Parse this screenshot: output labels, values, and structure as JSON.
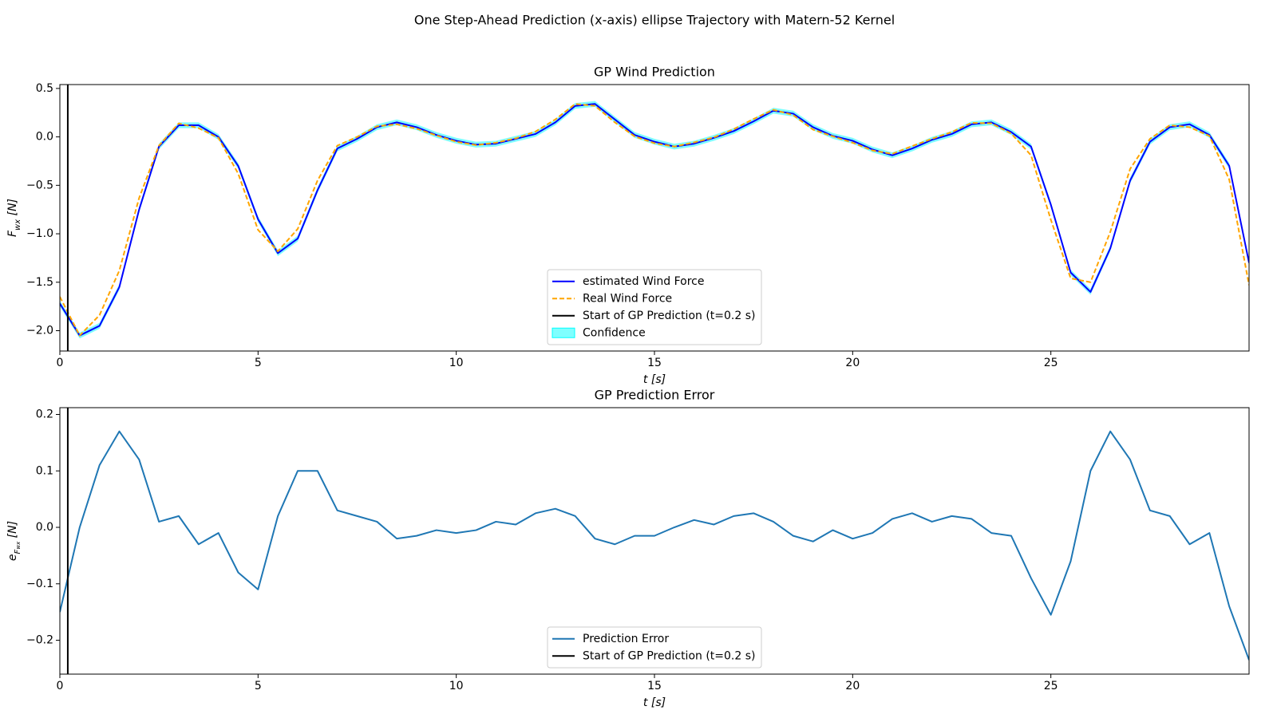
{
  "suptitle": "One Step-Ahead Prediction (x-axis) ellipse Trajectory with Matern-52 Kernel",
  "chart_data": [
    {
      "type": "line",
      "title": "GP Wind Prediction",
      "xlabel": {
        "main": "t",
        "unit": "[s]"
      },
      "ylabel": {
        "main": "F",
        "sub": "wx",
        "unit": "[N]"
      },
      "x": [
        0,
        0.5,
        1,
        1.5,
        2,
        2.5,
        3,
        3.5,
        4,
        4.5,
        5,
        5.5,
        6,
        6.5,
        7,
        7.5,
        8,
        8.5,
        9,
        9.5,
        10,
        10.5,
        11,
        11.5,
        12,
        12.5,
        13,
        13.5,
        14,
        14.5,
        15,
        15.5,
        16,
        16.5,
        17,
        17.5,
        18,
        18.5,
        19,
        19.5,
        20,
        20.5,
        21,
        21.5,
        22,
        22.5,
        23,
        23.5,
        24,
        24.5,
        25,
        25.5,
        26,
        26.5,
        27,
        27.5,
        28,
        28.5,
        29,
        29.5,
        30
      ],
      "series": [
        {
          "name": "estimated Wind Force",
          "color": "#0000ff",
          "values": [
            -1.72,
            -2.05,
            -1.95,
            -1.55,
            -0.75,
            -0.1,
            0.12,
            0.12,
            0.0,
            -0.3,
            -0.85,
            -1.2,
            -1.05,
            -0.55,
            -0.12,
            -0.02,
            0.1,
            0.15,
            0.1,
            0.02,
            -0.04,
            -0.08,
            -0.07,
            -0.02,
            0.03,
            0.15,
            0.32,
            0.34,
            0.18,
            0.02,
            -0.05,
            -0.1,
            -0.07,
            -0.01,
            0.06,
            0.16,
            0.27,
            0.24,
            0.1,
            0.01,
            -0.04,
            -0.13,
            -0.19,
            -0.12,
            -0.03,
            0.03,
            0.13,
            0.15,
            0.05,
            -0.1,
            -0.7,
            -1.4,
            -1.6,
            -1.15,
            -0.45,
            -0.05,
            0.1,
            0.13,
            0.02,
            -0.3,
            -1.3
          ]
        },
        {
          "name": "Real Wind Force",
          "color": "#ffa500",
          "dashed": true,
          "values": [
            -1.65,
            -2.05,
            -1.84,
            -1.38,
            -0.63,
            -0.09,
            0.14,
            0.09,
            -0.01,
            -0.38,
            -0.96,
            -1.18,
            -0.95,
            -0.45,
            -0.09,
            0.0,
            0.11,
            0.13,
            0.085,
            0.015,
            -0.05,
            -0.085,
            -0.06,
            -0.015,
            0.055,
            0.18,
            0.34,
            0.32,
            0.15,
            0.005,
            -0.065,
            -0.1,
            -0.057,
            -0.005,
            0.08,
            0.185,
            0.28,
            0.225,
            0.075,
            0.005,
            -0.06,
            -0.14,
            -0.175,
            -0.095,
            -0.02,
            0.05,
            0.145,
            0.14,
            0.035,
            -0.19,
            -0.855,
            -1.46,
            -1.5,
            -0.98,
            -0.33,
            -0.02,
            0.12,
            0.1,
            0.01,
            -0.44,
            -1.53
          ]
        }
      ],
      "vline": {
        "name": "Start of GP Prediction (t=0.2 s)",
        "x": 0.2,
        "color": "#000000"
      },
      "confidence": {
        "name": "Confidence",
        "color": "#00ffff",
        "halfwidth": 0.03
      },
      "xlim": [
        0,
        30
      ],
      "xticks": [
        0,
        5,
        10,
        15,
        20,
        25
      ],
      "ylim": [
        -2.21,
        0.54
      ],
      "yticks": [
        {
          "value": -2.0,
          "label": "−2.0"
        },
        {
          "value": -1.5,
          "label": "−1.5"
        },
        {
          "value": -1.0,
          "label": "−1.0"
        },
        {
          "value": -0.5,
          "label": "−0.5"
        },
        {
          "value": 0.0,
          "label": "0.0"
        },
        0.5
      ],
      "legend": "lower center",
      "grid": false
    },
    {
      "type": "line",
      "title": "GP Prediction Error",
      "xlabel": {
        "main": "t",
        "unit": "[s]"
      },
      "ylabel": {
        "main": "e",
        "sub": "F",
        "subsub": "wx",
        "unit": "[N]"
      },
      "x": [
        0,
        0.5,
        1,
        1.5,
        2,
        2.5,
        3,
        3.5,
        4,
        4.5,
        5,
        5.5,
        6,
        6.5,
        7,
        7.5,
        8,
        8.5,
        9,
        9.5,
        10,
        10.5,
        11,
        11.5,
        12,
        12.5,
        13,
        13.5,
        14,
        14.5,
        15,
        15.5,
        16,
        16.5,
        17,
        17.5,
        18,
        18.5,
        19,
        19.5,
        20,
        20.5,
        21,
        21.5,
        22,
        22.5,
        23,
        23.5,
        24,
        24.5,
        25,
        25.5,
        26,
        26.5,
        27,
        27.5,
        28,
        28.5,
        29,
        29.5,
        30
      ],
      "series": [
        {
          "name": "Prediction Error",
          "color": "#1f77b4",
          "values": [
            -0.15,
            0.0,
            0.11,
            0.17,
            0.12,
            0.01,
            0.02,
            -0.03,
            -0.01,
            -0.08,
            -0.11,
            0.02,
            0.1,
            0.1,
            0.03,
            0.02,
            0.01,
            -0.02,
            -0.015,
            -0.005,
            -0.01,
            -0.005,
            0.01,
            0.005,
            0.025,
            0.033,
            0.02,
            -0.02,
            -0.03,
            -0.015,
            -0.015,
            0.0,
            0.013,
            0.005,
            0.02,
            0.025,
            0.01,
            -0.015,
            -0.025,
            -0.005,
            -0.02,
            -0.01,
            0.015,
            0.025,
            0.01,
            0.02,
            0.015,
            -0.01,
            -0.015,
            -0.09,
            -0.155,
            -0.06,
            0.1,
            0.17,
            0.12,
            0.03,
            0.02,
            -0.03,
            -0.01,
            -0.14,
            -0.235
          ]
        }
      ],
      "vline": {
        "name": "Start of GP Prediction (t=0.2 s)",
        "x": 0.2,
        "color": "#000000"
      },
      "xlim": [
        0,
        30
      ],
      "xticks": [
        0,
        5,
        10,
        15,
        20,
        25
      ],
      "ylim": [
        -0.26,
        0.212
      ],
      "yticks": [
        {
          "value": -0.2,
          "label": "−0.2"
        },
        {
          "value": -0.1,
          "label": "−0.1"
        },
        {
          "value": 0.0,
          "label": "0.0"
        },
        0.1,
        0.2
      ],
      "legend": "lower center",
      "grid": false
    }
  ]
}
